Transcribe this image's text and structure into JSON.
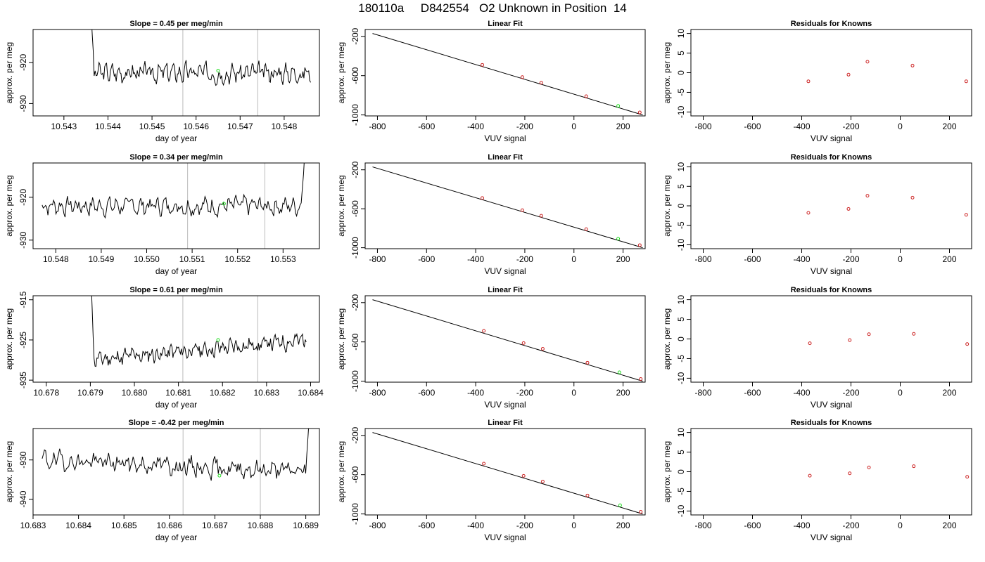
{
  "page_title": "180110a     D842554   O2 Unknown in Position  14",
  "colors": {
    "line": "#000000",
    "fit_line": "#000000",
    "known_points": "#cc2222",
    "unknown_point": "#22dd22",
    "marker_lines": "#bbbbbb"
  },
  "chart_data": [
    {
      "type": "line",
      "row": 0,
      "col": 0,
      "title": "Slope =  0.45  per meg/min",
      "xlabel": "day of year",
      "ylabel": "approx. per meg",
      "xlim": [
        10.5423,
        10.5488
      ],
      "ylim": [
        -933,
        -912
      ],
      "xticks": [
        "10.543",
        "10.544",
        "10.545",
        "10.546",
        "10.547",
        "10.548"
      ],
      "xtick_values": [
        10.543,
        10.544,
        10.545,
        10.546,
        10.547,
        10.548
      ],
      "yticks": [
        "-920",
        "-930"
      ],
      "ytick_values": [
        -920,
        -930
      ],
      "vlines": [
        10.5457,
        10.5474
      ],
      "green_point": {
        "x": 10.5465,
        "y": -922
      },
      "series": {
        "x_start": 10.5436,
        "x_end": 10.5486,
        "base": -922.5,
        "amp": 2.6,
        "start_spike": -905,
        "end_spike": null,
        "seed": 3
      }
    },
    {
      "type": "line",
      "row": 1,
      "col": 0,
      "title": "Slope =  0.34  per meg/min",
      "xlabel": "day of year",
      "ylabel": "approx. per meg",
      "xlim": [
        10.5475,
        10.5538
      ],
      "ylim": [
        -932,
        -912
      ],
      "xticks": [
        "10.548",
        "10.549",
        "10.550",
        "10.551",
        "10.552",
        "10.553"
      ],
      "xtick_values": [
        10.548,
        10.549,
        10.55,
        10.551,
        10.552,
        10.553
      ],
      "yticks": [
        "-920",
        "-930"
      ],
      "ytick_values": [
        -920,
        -930
      ],
      "vlines": [
        10.5509,
        10.5526
      ],
      "green_point": {
        "x": 10.5517,
        "y": -921.5
      },
      "series": {
        "x_start": 10.5477,
        "x_end": 10.5535,
        "base": -922,
        "amp": 2.4,
        "start_spike": null,
        "end_spike": -905,
        "seed": 7
      }
    },
    {
      "type": "line",
      "row": 2,
      "col": 0,
      "title": "Slope =  0.61  per meg/min",
      "xlabel": "day of year",
      "ylabel": "approx. per meg",
      "xlim": [
        10.6777,
        10.6842
      ],
      "ylim": [
        -935.5,
        -914
      ],
      "xticks": [
        "10.678",
        "10.679",
        "10.680",
        "10.681",
        "10.682",
        "10.683",
        "10.684"
      ],
      "xtick_values": [
        10.678,
        10.679,
        10.68,
        10.681,
        10.682,
        10.683,
        10.684
      ],
      "yticks": [
        "-915",
        "-925",
        "-935"
      ],
      "ytick_values": [
        -915,
        -925,
        -935
      ],
      "vlines": [
        10.6811,
        10.6828
      ],
      "green_point": {
        "x": 10.6819,
        "y": -925
      },
      "series": {
        "x_start": 10.679,
        "x_end": 10.6839,
        "base": -927.5,
        "amp": 2.4,
        "start_spike": -905,
        "end_spike": null,
        "seed": 11,
        "trend": 5
      }
    },
    {
      "type": "line",
      "row": 3,
      "col": 0,
      "title": "Slope =  -0.42  per meg/min",
      "xlabel": "day of year",
      "ylabel": "approx. per meg",
      "xlim": [
        10.683,
        10.6893
      ],
      "ylim": [
        -944,
        -922
      ],
      "xticks": [
        "10.683",
        "10.684",
        "10.685",
        "10.686",
        "10.687",
        "10.688",
        "10.689"
      ],
      "xtick_values": [
        10.683,
        10.684,
        10.685,
        10.686,
        10.687,
        10.688,
        10.689
      ],
      "yticks": [
        "-930",
        "-940"
      ],
      "ytick_values": [
        -930,
        -940
      ],
      "vlines": [
        10.6863,
        10.688
      ],
      "green_point": {
        "x": 10.6871,
        "y": -934
      },
      "series": {
        "x_start": 10.6832,
        "x_end": 10.6891,
        "base": -931.5,
        "amp": 2.8,
        "start_spike": null,
        "end_spike": -915,
        "seed": 19,
        "trend": -3
      }
    },
    {
      "type": "scatter",
      "row": 0,
      "col": 1,
      "title": "Linear Fit",
      "xlabel": "VUV signal",
      "ylabel": "approx. per meg",
      "xlim": [
        -850,
        290
      ],
      "ylim": [
        -1010,
        -130
      ],
      "xticks": [
        "-800",
        "-600",
        "-400",
        "-200",
        "0",
        "200"
      ],
      "xtick_values": [
        -800,
        -600,
        -400,
        -200,
        0,
        200
      ],
      "yticks": [
        "-200",
        "-600",
        "-1000"
      ],
      "ytick_values": [
        -200,
        -600,
        -1000
      ],
      "fit_line": {
        "x": [
          -820,
          280
        ],
        "y": [
          -170,
          -1000
        ]
      },
      "knowns": {
        "x": [
          -373,
          -210,
          -133,
          50,
          268
        ],
        "y": [
          -490,
          -615,
          -672,
          -810,
          -974
        ]
      },
      "unknown": {
        "x": 180,
        "y": -908
      }
    },
    {
      "type": "scatter",
      "row": 1,
      "col": 1,
      "title": "Linear Fit",
      "xlabel": "VUV signal",
      "ylabel": "approx. per meg",
      "xlim": [
        -850,
        290
      ],
      "ylim": [
        -1010,
        -130
      ],
      "xticks": [
        "-800",
        "-600",
        "-400",
        "-200",
        "0",
        "200"
      ],
      "xtick_values": [
        -800,
        -600,
        -400,
        -200,
        0,
        200
      ],
      "yticks": [
        "-200",
        "-600",
        "-1000"
      ],
      "ytick_values": [
        -200,
        -600,
        -1000
      ],
      "fit_line": {
        "x": [
          -820,
          280
        ],
        "y": [
          -170,
          -1000
        ]
      },
      "knowns": {
        "x": [
          -373,
          -210,
          -133,
          50,
          268
        ],
        "y": [
          -490,
          -615,
          -672,
          -810,
          -974
        ]
      },
      "unknown": {
        "x": 180,
        "y": -908
      }
    },
    {
      "type": "scatter",
      "row": 2,
      "col": 1,
      "title": "Linear Fit",
      "xlabel": "VUV signal",
      "ylabel": "approx. per meg",
      "xlim": [
        -850,
        290
      ],
      "ylim": [
        -1010,
        -130
      ],
      "xticks": [
        "-800",
        "-600",
        "-400",
        "-200",
        "0",
        "200"
      ],
      "xtick_values": [
        -800,
        -600,
        -400,
        -200,
        0,
        200
      ],
      "yticks": [
        "-200",
        "-600",
        "-1000"
      ],
      "ytick_values": [
        -200,
        -600,
        -1000
      ],
      "fit_line": {
        "x": [
          -820,
          280
        ],
        "y": [
          -170,
          -1000
        ]
      },
      "knowns": {
        "x": [
          -367,
          -205,
          -127,
          55,
          272
        ],
        "y": [
          -488,
          -612,
          -670,
          -812,
          -978
        ]
      },
      "unknown": {
        "x": 185,
        "y": -910
      }
    },
    {
      "type": "scatter",
      "row": 3,
      "col": 1,
      "title": "Linear Fit",
      "xlabel": "VUV signal",
      "ylabel": "approx. per meg",
      "xlim": [
        -850,
        290
      ],
      "ylim": [
        -1010,
        -130
      ],
      "xticks": [
        "-800",
        "-600",
        "-400",
        "-200",
        "0",
        "200"
      ],
      "xtick_values": [
        -800,
        -600,
        -400,
        -200,
        0,
        200
      ],
      "yticks": [
        "-200",
        "-600",
        "-1000"
      ],
      "ytick_values": [
        -200,
        -600,
        -1000
      ],
      "fit_line": {
        "x": [
          -820,
          280
        ],
        "y": [
          -170,
          -1000
        ]
      },
      "knowns": {
        "x": [
          -367,
          -205,
          -127,
          55,
          272
        ],
        "y": [
          -488,
          -612,
          -670,
          -812,
          -978
        ]
      },
      "unknown": {
        "x": 188,
        "y": -912
      }
    },
    {
      "type": "scatter",
      "row": 0,
      "col": 2,
      "title": "Residuals for Knowns",
      "xlabel": "VUV signal",
      "ylabel": "approx. per meg",
      "xlim": [
        -850,
        290
      ],
      "ylim": [
        -11,
        11
      ],
      "xticks": [
        "-800",
        "-600",
        "-400",
        "-200",
        "0",
        "200"
      ],
      "xtick_values": [
        -800,
        -600,
        -400,
        -200,
        0,
        200
      ],
      "yticks": [
        "10",
        "5",
        "0",
        "-5",
        "-10"
      ],
      "ytick_values": [
        10,
        5,
        0,
        -5,
        -10
      ],
      "knowns": {
        "x": [
          -373,
          -210,
          -133,
          50,
          268
        ],
        "y": [
          -2.2,
          -0.5,
          2.8,
          1.8,
          -2.2
        ]
      }
    },
    {
      "type": "scatter",
      "row": 1,
      "col": 2,
      "title": "Residuals for Knowns",
      "xlabel": "VUV signal",
      "ylabel": "approx. per meg",
      "xlim": [
        -850,
        290
      ],
      "ylim": [
        -11,
        11
      ],
      "xticks": [
        "-800",
        "-600",
        "-400",
        "-200",
        "0",
        "200"
      ],
      "xtick_values": [
        -800,
        -600,
        -400,
        -200,
        0,
        200
      ],
      "yticks": [
        "10",
        "5",
        "0",
        "-5",
        "-10"
      ],
      "ytick_values": [
        10,
        5,
        0,
        -5,
        -10
      ],
      "knowns": {
        "x": [
          -373,
          -210,
          -133,
          50,
          268
        ],
        "y": [
          -1.8,
          -0.8,
          2.6,
          2.1,
          -2.3
        ]
      }
    },
    {
      "type": "scatter",
      "row": 2,
      "col": 2,
      "title": "Residuals for Knowns",
      "xlabel": "VUV signal",
      "ylabel": "approx. per meg",
      "xlim": [
        -850,
        290
      ],
      "ylim": [
        -11,
        11
      ],
      "xticks": [
        "-800",
        "-600",
        "-400",
        "-200",
        "0",
        "200"
      ],
      "xtick_values": [
        -800,
        -600,
        -400,
        -200,
        0,
        200
      ],
      "yticks": [
        "10",
        "5",
        "0",
        "-5",
        "-10"
      ],
      "ytick_values": [
        10,
        5,
        0,
        -5,
        -10
      ],
      "knowns": {
        "x": [
          -367,
          -205,
          -127,
          55,
          272
        ],
        "y": [
          -1.1,
          -0.3,
          1.2,
          1.3,
          -1.3
        ]
      }
    },
    {
      "type": "scatter",
      "row": 3,
      "col": 2,
      "title": "Residuals for Knowns",
      "xlabel": "VUV signal",
      "ylabel": "approx. per meg",
      "xlim": [
        -850,
        290
      ],
      "ylim": [
        -11,
        11
      ],
      "xticks": [
        "-800",
        "-600",
        "-400",
        "-200",
        "0",
        "200"
      ],
      "xtick_values": [
        -800,
        -600,
        -400,
        -200,
        0,
        200
      ],
      "yticks": [
        "10",
        "5",
        "0",
        "-5",
        "-10"
      ],
      "ytick_values": [
        10,
        5,
        0,
        -5,
        -10
      ],
      "knowns": {
        "x": [
          -367,
          -205,
          -127,
          55,
          272
        ],
        "y": [
          -1.0,
          -0.4,
          1.1,
          1.4,
          -1.3
        ]
      }
    }
  ]
}
